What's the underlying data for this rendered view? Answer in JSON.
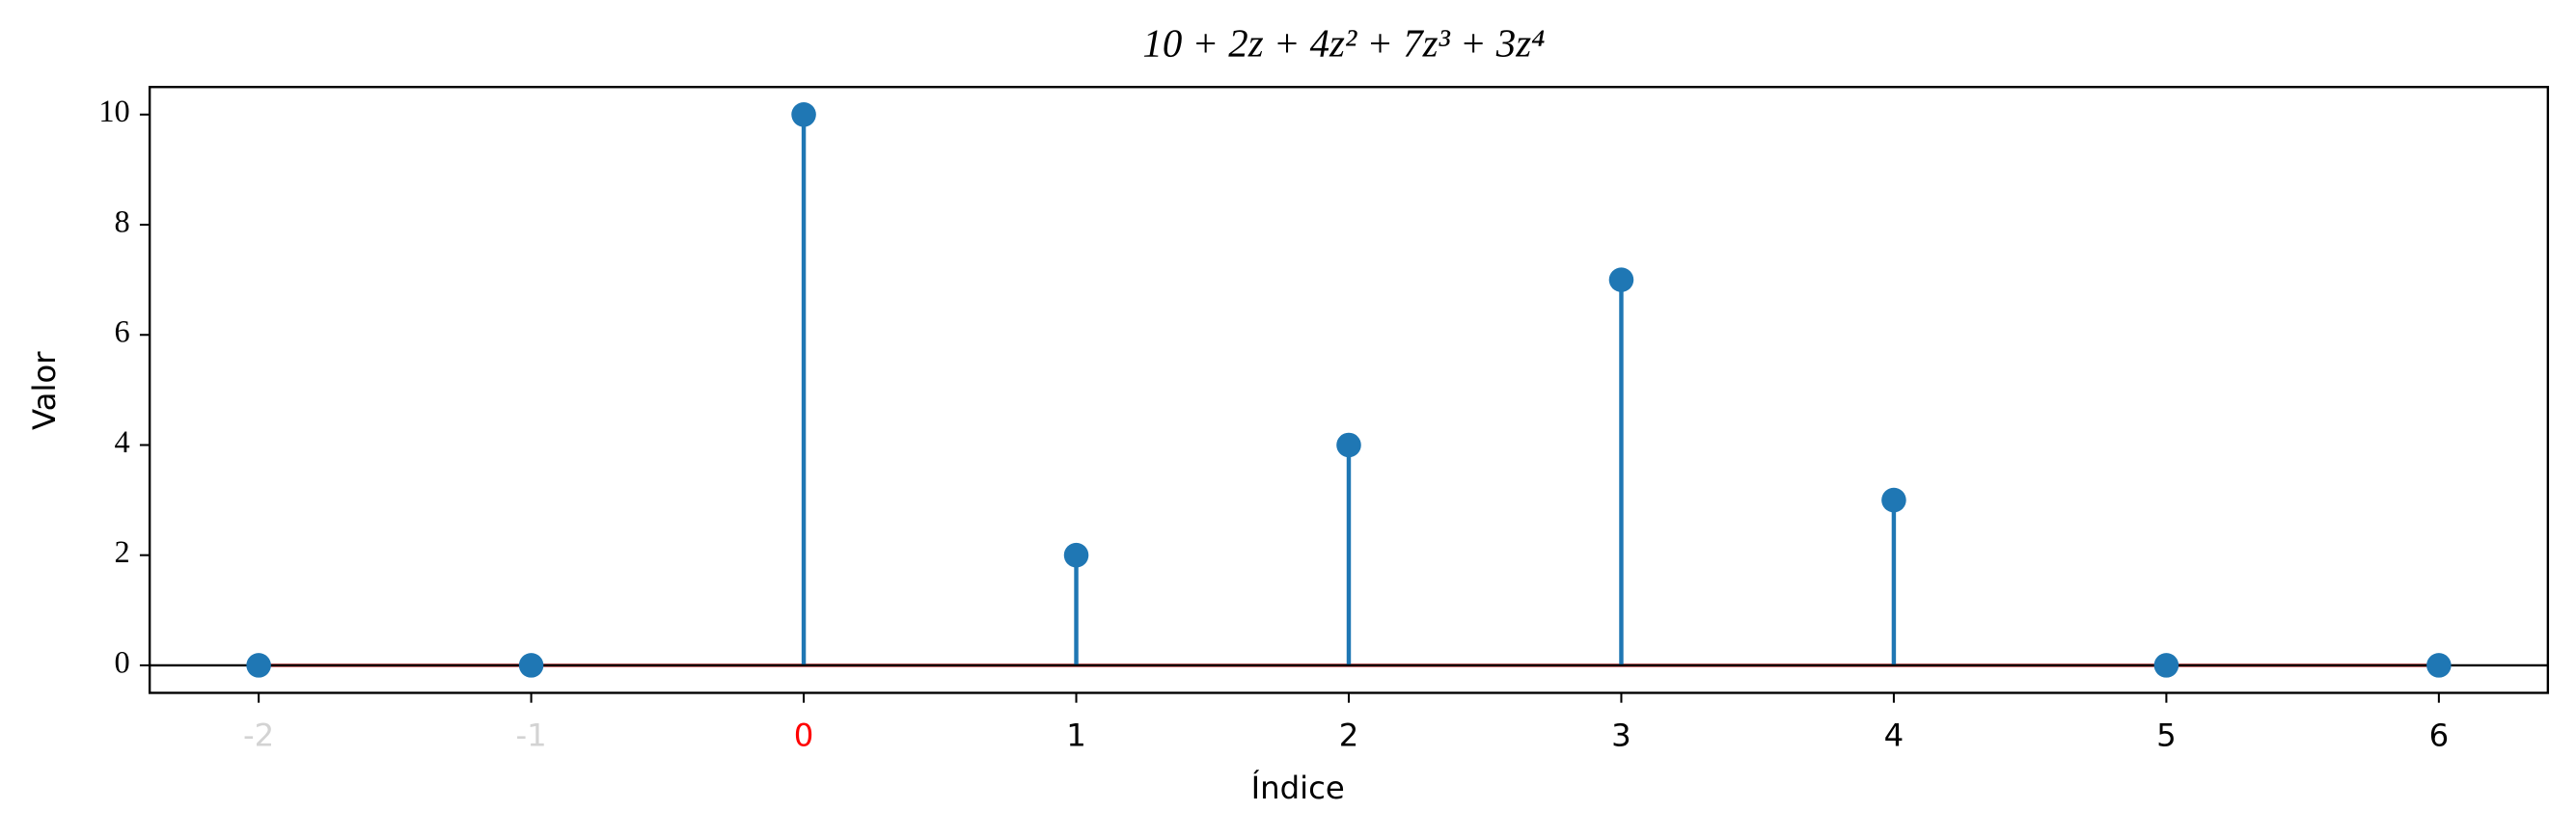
{
  "chart_data": {
    "type": "stem",
    "title": "10 + 2z + 4z² + 7z³ + 3z⁴",
    "xlabel": "Índice",
    "ylabel": "Valor",
    "x": [
      -2,
      -1,
      0,
      1,
      2,
      3,
      4,
      5,
      6
    ],
    "values": [
      0,
      0,
      10,
      2,
      4,
      7,
      3,
      0,
      0
    ],
    "color": "#1f77b4",
    "baseline_color": "#d62728",
    "zero_line_color": "#000000",
    "xlim": [
      -2.4,
      6.4
    ],
    "ylim": [
      -0.5,
      10.5
    ],
    "xticks": [
      -2,
      -1,
      0,
      1,
      2,
      3,
      4,
      5,
      6
    ],
    "xtick_colors": [
      "#d3d3d3",
      "#d3d3d3",
      "#ff0000",
      "#000000",
      "#000000",
      "#000000",
      "#000000",
      "#000000",
      "#000000"
    ],
    "yticks": [
      0,
      2,
      4,
      6,
      8,
      10
    ]
  }
}
